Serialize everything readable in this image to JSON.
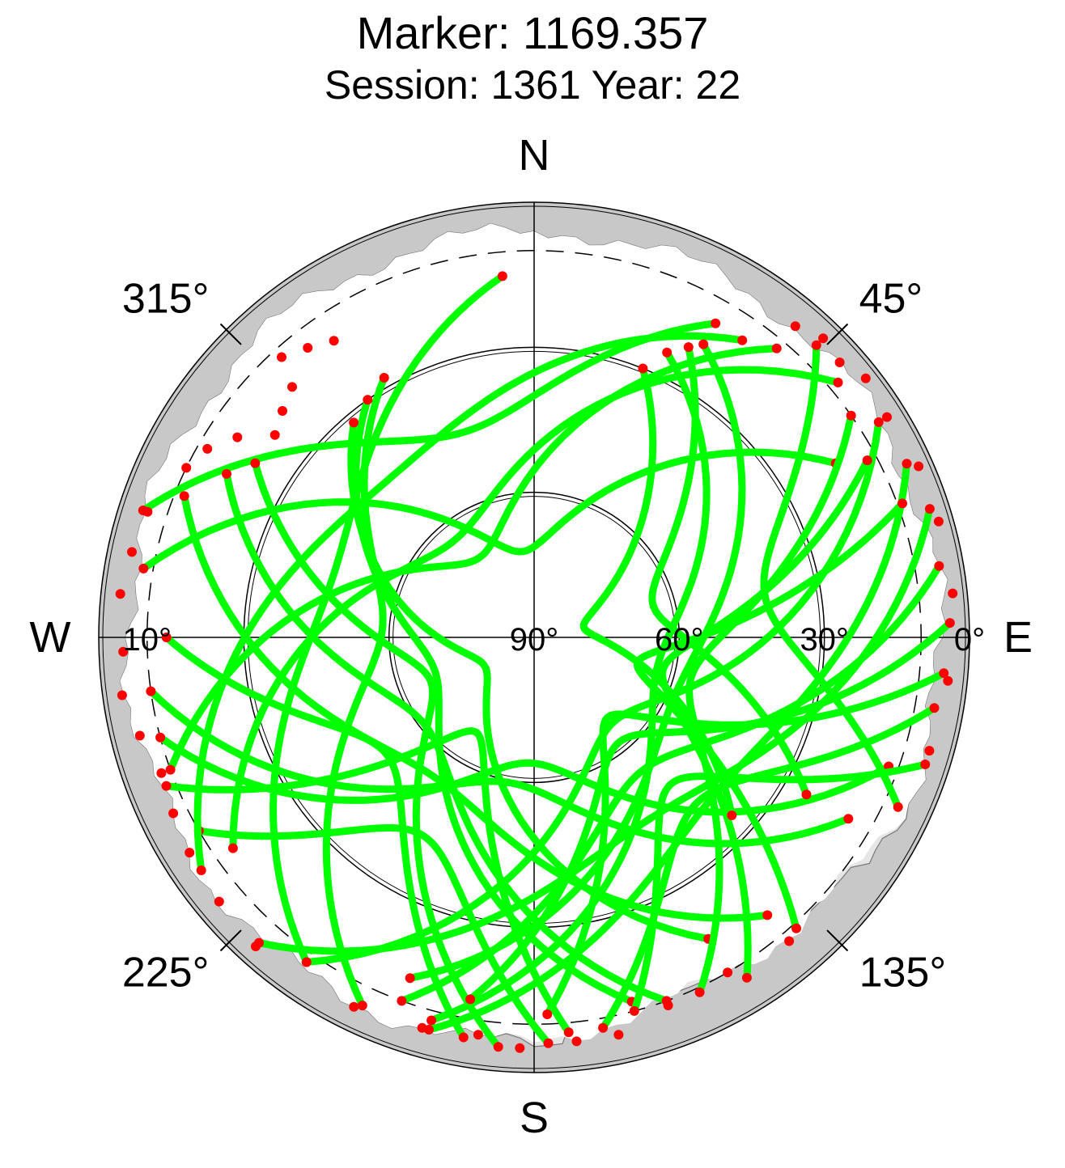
{
  "title": "Marker: 1169.357",
  "subtitle": "Session: 1361 Year: 22",
  "compass": {
    "north": "N",
    "south": "S",
    "east": "E",
    "west": "W"
  },
  "azimuth_labels": [
    {
      "deg": 45,
      "text": "45°"
    },
    {
      "deg": 135,
      "text": "135°"
    },
    {
      "deg": 225,
      "text": "225°"
    },
    {
      "deg": 315,
      "text": "315°"
    }
  ],
  "elevation_labels": [
    {
      "el": 0,
      "text": "0°"
    },
    {
      "el": 30,
      "text": "30°"
    },
    {
      "el": 60,
      "text": "60°"
    },
    {
      "el": 90,
      "text": "90°"
    },
    {
      "el": 10,
      "text": "10°",
      "side": "west"
    }
  ],
  "colors": {
    "tracked": "#00ff00",
    "low_elevation": "#ff0000",
    "obstruction": "#c8c8c8",
    "obstruction_light": "#e6e6e6",
    "grid": "#000000",
    "background": "#ffffff"
  },
  "chart_data": {
    "type": "scatter",
    "projection": "polar-skyplot",
    "radial_axis": "elevation (deg)",
    "radial_range": [
      90,
      0
    ],
    "angular_axis": "azimuth (deg, clockwise from north)",
    "elevation_circles": [
      0,
      30,
      60,
      90
    ],
    "cutoff_elevation_dashed": 10,
    "series": [],
    "tracks": [
      {
        "start": [
          355,
          15
        ],
        "end": [
          215,
          8
        ]
      },
      {
        "start": [
          330,
          28
        ],
        "end": [
          205,
          6
        ]
      },
      {
        "start": [
          325,
          30
        ],
        "end": [
          165,
          12
        ]
      },
      {
        "start": [
          320,
          32
        ],
        "end": [
          150,
          18
        ]
      },
      {
        "start": [
          280,
          8
        ],
        "end": [
          60,
          18
        ]
      },
      {
        "start": [
          288,
          5
        ],
        "end": [
          30,
          15
        ]
      },
      {
        "start": [
          270,
          14
        ],
        "end": [
          190,
          6
        ]
      },
      {
        "start": [
          262,
          10
        ],
        "end": [
          120,
          15
        ]
      },
      {
        "start": [
          255,
          10
        ],
        "end": [
          110,
          12
        ]
      },
      {
        "start": [
          248,
          8
        ],
        "end": [
          175,
          8
        ]
      },
      {
        "start": [
          240,
          10
        ],
        "end": [
          178,
          6
        ]
      },
      {
        "start": [
          292,
          12
        ],
        "end": [
          140,
          15
        ]
      },
      {
        "start": [
          298,
          18
        ],
        "end": [
          160,
          10
        ]
      },
      {
        "start": [
          302,
          22
        ],
        "end": [
          185,
          5
        ]
      },
      {
        "start": [
          40,
          12
        ],
        "end": [
          250,
          10
        ]
      },
      {
        "start": [
          35,
          15
        ],
        "end": [
          235,
          6
        ]
      },
      {
        "start": [
          30,
          20
        ],
        "end": [
          200,
          15
        ]
      },
      {
        "start": [
          25,
          25
        ],
        "end": [
          195,
          8
        ]
      },
      {
        "start": [
          50,
          8
        ],
        "end": [
          235,
          14
        ]
      },
      {
        "start": [
          58,
          6
        ],
        "end": [
          215,
          8
        ]
      },
      {
        "start": [
          65,
          5
        ],
        "end": [
          195,
          6
        ]
      },
      {
        "start": [
          72,
          4
        ],
        "end": [
          222,
          5
        ]
      },
      {
        "start": [
          80,
          5
        ],
        "end": [
          200,
          10
        ]
      },
      {
        "start": [
          88,
          4
        ],
        "end": [
          190,
          14
        ]
      },
      {
        "start": [
          95,
          5
        ],
        "end": [
          178,
          12
        ]
      },
      {
        "start": [
          100,
          6
        ],
        "end": [
          170,
          8
        ]
      },
      {
        "start": [
          108,
          5
        ],
        "end": [
          165,
          10
        ]
      },
      {
        "start": [
          55,
          10
        ],
        "end": [
          155,
          9
        ]
      },
      {
        "start": [
          62,
          12
        ],
        "end": [
          148,
          7
        ]
      },
      {
        "start": [
          70,
          9
        ],
        "end": [
          138,
          9
        ]
      },
      {
        "start": [
          44,
          6
        ],
        "end": [
          115,
          7
        ]
      },
      {
        "start": [
          28,
          22
        ],
        "end": [
          120,
          25
        ]
      },
      {
        "start": [
          22,
          30
        ],
        "end": [
          132,
          35
        ]
      }
    ]
  }
}
